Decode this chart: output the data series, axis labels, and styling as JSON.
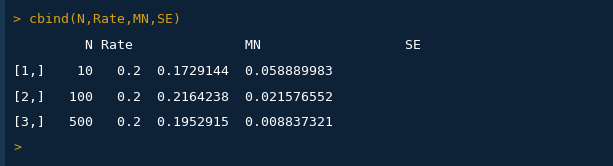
{
  "bg_color": "#0d2137",
  "left_bar_color": "#18364f",
  "prompt_color": "#d4a017",
  "text_color": "#ffffff",
  "lines": [
    {
      "text": "> cbind(N,Rate,MN,SE)",
      "color": "#d4a017"
    },
    {
      "text": "         N Rate              MN                  SE",
      "color": "#ffffff"
    },
    {
      "text": "[1,]    10   0.2  0.1729144  0.058889983",
      "color": "#ffffff"
    },
    {
      "text": "[2,]   100   0.2  0.2164238  0.021576552",
      "color": "#ffffff"
    },
    {
      "text": "[3,]   500   0.2  0.1952915  0.008837321",
      "color": "#ffffff"
    },
    {
      "text": ">",
      "color": "#d4a017"
    }
  ],
  "left_bar_width": 0.008,
  "font_size": 9.5,
  "mono_font": "DejaVu Sans Mono",
  "fig_width": 6.13,
  "fig_height": 1.66,
  "dpi": 100
}
